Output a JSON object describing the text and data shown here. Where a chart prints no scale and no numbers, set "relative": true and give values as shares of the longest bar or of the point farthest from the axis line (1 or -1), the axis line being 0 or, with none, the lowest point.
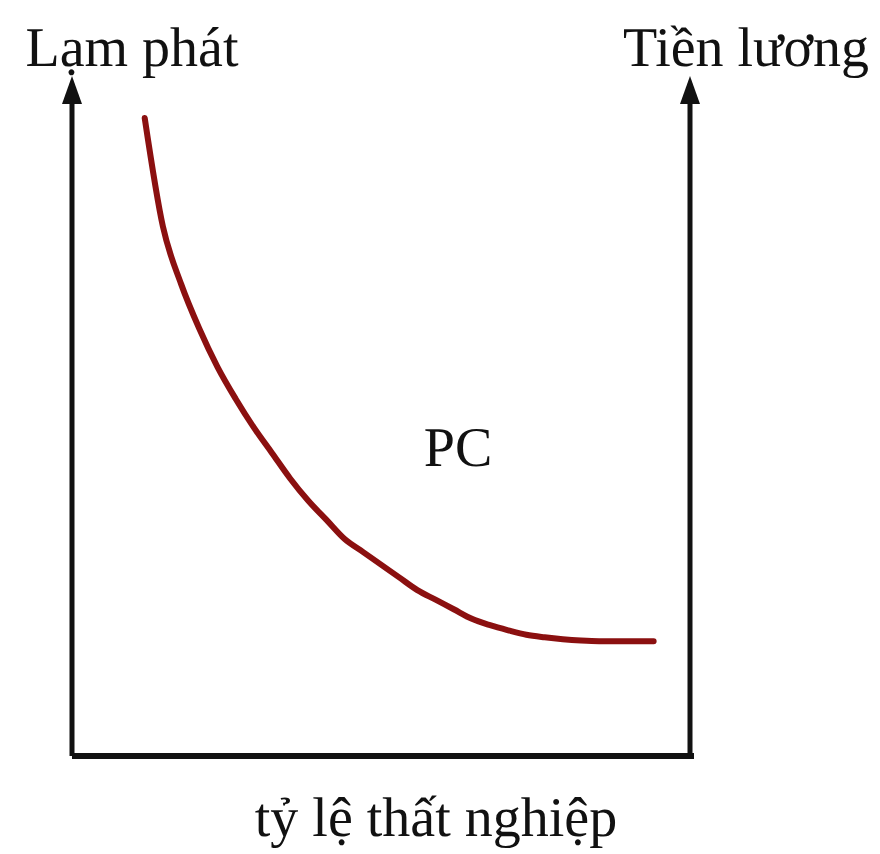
{
  "chart_data": {
    "type": "line",
    "relative": true,
    "ylabel": "Lạm phát",
    "y2label": "Tiền lương",
    "xlabel": "tỷ lệ thất nghiệp",
    "categories": [
      null,
      null,
      null,
      null,
      null,
      null,
      null,
      null,
      null,
      null,
      null,
      null,
      null,
      null,
      null,
      null,
      null,
      null,
      null,
      null,
      null,
      null,
      null,
      null,
      null,
      null,
      null,
      null,
      null,
      null,
      null,
      null,
      null,
      null,
      null
    ],
    "series": [
      {
        "name": "PC",
        "color": "#8b1010",
        "values": [
          null,
          null,
          null,
          null,
          1,
          0.83,
          0.74,
          0.67,
          0.61,
          0.56,
          0.515,
          0.475,
          0.435,
          0.4,
          0.37,
          0.34,
          0.32,
          0.3,
          0.28,
          0.26,
          0.245,
          0.23,
          0.215,
          0.205,
          0.197,
          0.19,
          0.186,
          0.183,
          0.181,
          0.18,
          0.18,
          0.18,
          0.18,
          null,
          null
        ]
      }
    ]
  }
}
